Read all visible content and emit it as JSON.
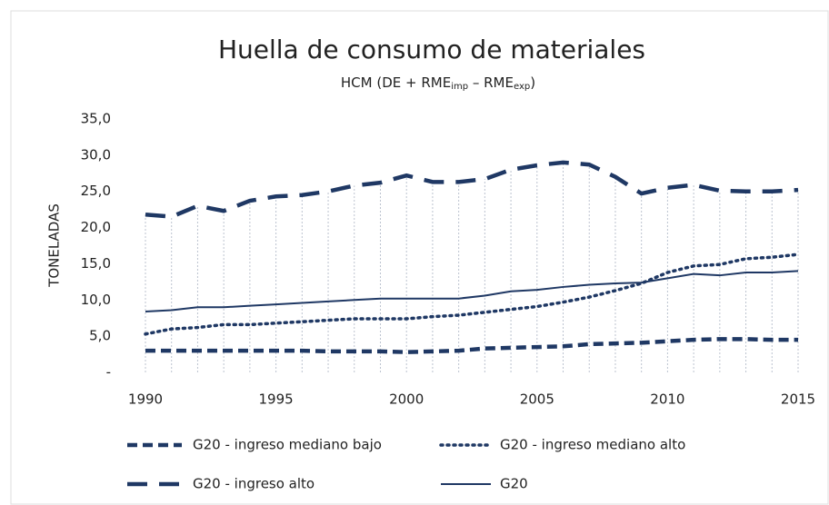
{
  "chart_data": {
    "type": "line",
    "title": "Huella de consumo de materiales",
    "subtitle_parts": [
      "HCM (DE + RME",
      "imp",
      " – RME",
      "exp",
      ")"
    ],
    "ylabel": "TONELADAS",
    "x": [
      1990,
      1991,
      1992,
      1993,
      1994,
      1995,
      1996,
      1997,
      1998,
      1999,
      2000,
      2001,
      2002,
      2003,
      2004,
      2005,
      2006,
      2007,
      2008,
      2009,
      2010,
      2011,
      2012,
      2013,
      2014,
      2015
    ],
    "xlim": [
      1990,
      2015
    ],
    "xticks": [
      1990,
      1995,
      2000,
      2005,
      2010,
      2015
    ],
    "ylim": [
      0,
      35
    ],
    "yticks": [
      {
        "value": 0,
        "label": "-"
      },
      {
        "value": 5,
        "label": "5,0"
      },
      {
        "value": 10,
        "label": "10,0"
      },
      {
        "value": 15,
        "label": "15,0"
      },
      {
        "value": 20,
        "label": "20,0"
      },
      {
        "value": 25,
        "label": "25,0"
      },
      {
        "value": 30,
        "label": "30,0"
      },
      {
        "value": 35,
        "label": "35,0"
      }
    ],
    "vertical_grid": true,
    "series": [
      {
        "name": "G20 - ingreso mediano bajo",
        "color": "#1f3864",
        "dash": "dashed",
        "values": [
          3.0,
          3.0,
          3.0,
          3.0,
          3.0,
          3.0,
          3.0,
          2.9,
          2.9,
          2.9,
          2.8,
          2.9,
          3.0,
          3.3,
          3.4,
          3.5,
          3.6,
          3.9,
          4.0,
          4.1,
          4.3,
          4.5,
          4.6,
          4.6,
          4.5,
          4.5
        ]
      },
      {
        "name": "G20 - ingreso mediano alto",
        "color": "#1f3864",
        "dash": "dotted",
        "values": [
          5.3,
          6.0,
          6.2,
          6.6,
          6.6,
          6.8,
          7.0,
          7.2,
          7.4,
          7.4,
          7.4,
          7.7,
          7.9,
          8.3,
          8.7,
          9.1,
          9.7,
          10.4,
          11.3,
          12.3,
          13.8,
          14.7,
          14.9,
          15.7,
          15.9,
          16.3
        ]
      },
      {
        "name": "G20 - ingreso alto",
        "color": "#1f3864",
        "dash": "longdash",
        "values": [
          21.8,
          21.5,
          23.0,
          22.3,
          23.7,
          24.3,
          24.5,
          25.0,
          25.8,
          26.2,
          27.2,
          26.3,
          26.3,
          26.7,
          28.0,
          28.6,
          29.0,
          28.7,
          27.0,
          24.7,
          25.5,
          25.9,
          25.1,
          25.0,
          25.0,
          25.2
        ]
      },
      {
        "name": "G20",
        "color": "#1f3864",
        "dash": "solid",
        "values": [
          8.4,
          8.6,
          9.0,
          9.0,
          9.2,
          9.4,
          9.6,
          9.8,
          10.0,
          10.2,
          10.2,
          10.2,
          10.2,
          10.6,
          11.2,
          11.4,
          11.8,
          12.1,
          12.3,
          12.4,
          13.0,
          13.6,
          13.4,
          13.8,
          13.8,
          14.0
        ]
      }
    ]
  }
}
